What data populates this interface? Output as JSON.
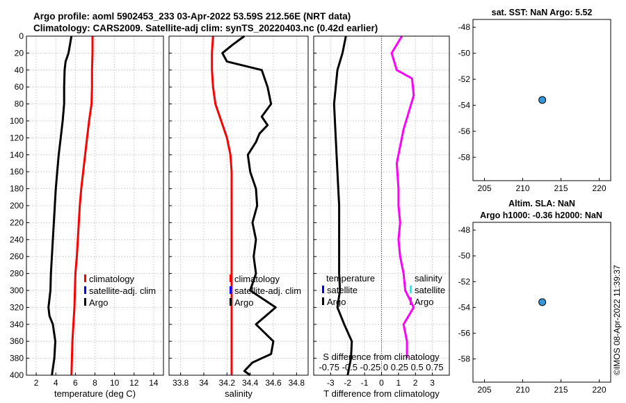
{
  "title_line1": "Argo profile: aoml 5902453_233 03-Apr-2022 53.59S 212.56E (NRT data)",
  "title_line2": "Climatology: CARS2009. Satellite-adj clim: synTS_20220403.nc (0.42d earlier)",
  "footer_stamp": "©IMOS 08-Apr-2022 11:39:37",
  "colors": {
    "argo": "#000000",
    "climatology": "#ff0000",
    "satellite_adj_clim": "#0000ff",
    "salinity_diff": "#ff00ff",
    "salinity_satellite": "#00ffff",
    "marker_fill": "#3399dd"
  },
  "chart_data": [
    {
      "type": "line",
      "id": "temperature",
      "xlabel": "temperature (deg C)",
      "xlim": [
        1,
        15
      ],
      "xticks": [
        2,
        4,
        6,
        8,
        10,
        12,
        14
      ],
      "ylim": [
        0,
        400
      ],
      "yticks": [
        0,
        20,
        40,
        60,
        80,
        100,
        120,
        140,
        160,
        180,
        200,
        220,
        240,
        260,
        280,
        300,
        320,
        340,
        360,
        380,
        400
      ],
      "y_reversed": true,
      "grid": true,
      "legend": [
        "climatology",
        "satellite-adj. clim",
        "Argo"
      ],
      "series": [
        {
          "name": "climatology",
          "color": "#ff0000",
          "points": [
            [
              7.75,
              0
            ],
            [
              7.75,
              20
            ],
            [
              7.7,
              40
            ],
            [
              7.7,
              60
            ],
            [
              7.65,
              80
            ],
            [
              7.4,
              100
            ],
            [
              7.2,
              120
            ],
            [
              7.0,
              140
            ],
            [
              6.8,
              160
            ],
            [
              6.6,
              180
            ],
            [
              6.45,
              200
            ],
            [
              6.35,
              220
            ],
            [
              6.25,
              240
            ],
            [
              6.15,
              260
            ],
            [
              6.0,
              280
            ],
            [
              5.95,
              300
            ],
            [
              5.9,
              320
            ],
            [
              5.8,
              340
            ],
            [
              5.7,
              360
            ],
            [
              5.65,
              380
            ],
            [
              5.6,
              400
            ]
          ]
        },
        {
          "name": "Argo",
          "color": "#000000",
          "points": [
            [
              5.6,
              0
            ],
            [
              5.45,
              10
            ],
            [
              5.3,
              20
            ],
            [
              5.0,
              30
            ],
            [
              4.9,
              40
            ],
            [
              4.85,
              60
            ],
            [
              4.85,
              80
            ],
            [
              4.7,
              100
            ],
            [
              4.5,
              120
            ],
            [
              4.3,
              140
            ],
            [
              4.15,
              160
            ],
            [
              4.0,
              180
            ],
            [
              3.9,
              200
            ],
            [
              3.8,
              220
            ],
            [
              3.7,
              240
            ],
            [
              3.6,
              260
            ],
            [
              3.5,
              280
            ],
            [
              3.45,
              300
            ],
            [
              3.25,
              320
            ],
            [
              3.35,
              330
            ],
            [
              3.7,
              340
            ],
            [
              3.95,
              360
            ],
            [
              3.85,
              380
            ],
            [
              3.6,
              400
            ]
          ]
        }
      ]
    },
    {
      "type": "line",
      "id": "salinity",
      "xlabel": "salinity",
      "xlim": [
        33.7,
        34.9
      ],
      "xticks": [
        33.8,
        34,
        34.2,
        34.4,
        34.6,
        34.8
      ],
      "ylim": [
        0,
        400
      ],
      "y_reversed": true,
      "grid": true,
      "legend": [
        "climatology",
        "satellite-adj. clim",
        "Argo"
      ],
      "series": [
        {
          "name": "climatology",
          "color": "#ff0000",
          "points": [
            [
              34.08,
              0
            ],
            [
              34.07,
              20
            ],
            [
              34.07,
              40
            ],
            [
              34.08,
              60
            ],
            [
              34.1,
              80
            ],
            [
              34.15,
              100
            ],
            [
              34.2,
              120
            ],
            [
              34.23,
              140
            ],
            [
              34.24,
              160
            ],
            [
              34.24,
              200
            ],
            [
              34.24,
              300
            ],
            [
              34.24,
              400
            ]
          ]
        },
        {
          "name": "Argo",
          "color": "#000000",
          "points": [
            [
              34.35,
              0
            ],
            [
              34.25,
              10
            ],
            [
              34.16,
              20
            ],
            [
              34.2,
              30
            ],
            [
              34.5,
              40
            ],
            [
              34.55,
              60
            ],
            [
              34.58,
              80
            ],
            [
              34.5,
              95
            ],
            [
              34.55,
              105
            ],
            [
              34.48,
              115
            ],
            [
              34.45,
              125
            ],
            [
              34.38,
              140
            ],
            [
              34.4,
              160
            ],
            [
              34.45,
              180
            ],
            [
              34.46,
              200
            ],
            [
              34.42,
              220
            ],
            [
              34.45,
              240
            ],
            [
              34.43,
              260
            ],
            [
              34.45,
              280
            ],
            [
              34.4,
              300
            ],
            [
              34.62,
              320
            ],
            [
              34.45,
              340
            ],
            [
              34.6,
              360
            ],
            [
              34.58,
              375
            ],
            [
              34.42,
              385
            ],
            [
              34.35,
              395
            ],
            [
              34.4,
              400
            ]
          ]
        }
      ]
    },
    {
      "type": "line",
      "id": "difference",
      "xlabel": "T difference from climatology",
      "top_label": "S difference from climatology",
      "top_ticks": [
        "-0.75",
        "-0.5",
        "-0.25",
        "0",
        "0.25",
        "0.5",
        "0.75"
      ],
      "xlim": [
        -4,
        4
      ],
      "xticks": [
        -3,
        -2,
        -1,
        0,
        1,
        2,
        3
      ],
      "ylim": [
        0,
        400
      ],
      "y_reversed": true,
      "grid": true,
      "legend_left_title": "temperature",
      "legend_left": [
        "satellite",
        "Argo"
      ],
      "legend_right_title": "salinity",
      "legend_right": [
        "satellite",
        "Argo"
      ],
      "series": [
        {
          "name": "T difference",
          "color": "#000000",
          "points": [
            [
              -2.1,
              0
            ],
            [
              -2.3,
              20
            ],
            [
              -2.6,
              40
            ],
            [
              -2.7,
              60
            ],
            [
              -2.8,
              80
            ],
            [
              -2.75,
              100
            ],
            [
              -2.7,
              120
            ],
            [
              -2.65,
              140
            ],
            [
              -2.6,
              160
            ],
            [
              -2.5,
              200
            ],
            [
              -2.5,
              240
            ],
            [
              -2.5,
              280
            ],
            [
              -2.45,
              300
            ],
            [
              -2.6,
              320
            ],
            [
              -2.2,
              340
            ],
            [
              -1.75,
              360
            ],
            [
              -1.8,
              380
            ],
            [
              -2.0,
              400
            ]
          ]
        },
        {
          "name": "S difference",
          "color": "#ff00ff",
          "points": [
            [
              1.2,
              0
            ],
            [
              0.6,
              20
            ],
            [
              0.9,
              40
            ],
            [
              1.8,
              50
            ],
            [
              1.9,
              70
            ],
            [
              1.6,
              90
            ],
            [
              1.3,
              110
            ],
            [
              1.1,
              130
            ],
            [
              0.9,
              150
            ],
            [
              1.0,
              180
            ],
            [
              1.0,
              200
            ],
            [
              1.1,
              220
            ],
            [
              1.0,
              240
            ],
            [
              1.1,
              260
            ],
            [
              1.3,
              280
            ],
            [
              1.4,
              300
            ],
            [
              1.9,
              320
            ],
            [
              1.3,
              340
            ],
            [
              1.5,
              360
            ],
            [
              1.5,
              380
            ]
          ]
        }
      ]
    },
    {
      "type": "scatter",
      "id": "map_sst",
      "title": "sat. SST: NaN Argo: 5.52",
      "xlim": [
        203.5,
        221.5
      ],
      "ylim": [
        -59.8,
        -47.4
      ],
      "xticks": [
        205,
        210,
        215,
        220
      ],
      "yticks": [
        -48,
        -50,
        -52,
        -54,
        -56,
        -58
      ],
      "points": [
        [
          212.56,
          -53.59
        ]
      ]
    },
    {
      "type": "scatter",
      "id": "map_sla",
      "title": "Altim. SLA: NaN",
      "subtitle": "Argo h1000: -0.36 h2000: NaN",
      "xlim": [
        203.5,
        221.5
      ],
      "ylim": [
        -59.8,
        -47.4
      ],
      "xticks": [
        205,
        210,
        215,
        220
      ],
      "yticks": [
        -48,
        -50,
        -52,
        -54,
        -56,
        -58
      ],
      "points": [
        [
          212.56,
          -53.59
        ]
      ]
    }
  ]
}
